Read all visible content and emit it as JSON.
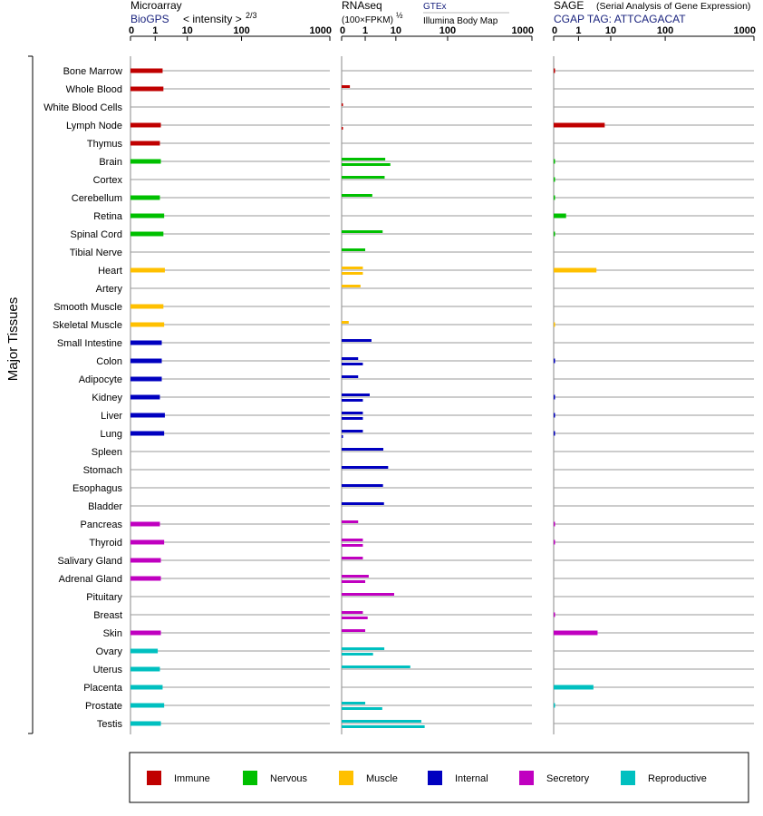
{
  "chart_data": {
    "type": "bar",
    "y_group_label": "Major Tissues",
    "tissues": [
      "Bone Marrow",
      "Whole Blood",
      "White Blood Cells",
      "Lymph Node",
      "Thymus",
      "Brain",
      "Cortex",
      "Cerebellum",
      "Retina",
      "Spinal Cord",
      "Tibial Nerve",
      "Heart",
      "Artery",
      "Smooth Muscle",
      "Skeletal Muscle",
      "Small Intestine",
      "Colon",
      "Adipocyte",
      "Kidney",
      "Liver",
      "Lung",
      "Spleen",
      "Stomach",
      "Esophagus",
      "Bladder",
      "Pancreas",
      "Thyroid",
      "Salivary Gland",
      "Adrenal Gland",
      "Pituitary",
      "Breast",
      "Skin",
      "Ovary",
      "Uterus",
      "Placenta",
      "Prostate",
      "Testis"
    ],
    "tissue_category": [
      "Immune",
      "Immune",
      "Immune",
      "Immune",
      "Immune",
      "Nervous",
      "Nervous",
      "Nervous",
      "Nervous",
      "Nervous",
      "Nervous",
      "Muscle",
      "Muscle",
      "Muscle",
      "Muscle",
      "Internal",
      "Internal",
      "Internal",
      "Internal",
      "Internal",
      "Internal",
      "Internal",
      "Internal",
      "Internal",
      "Internal",
      "Secretory",
      "Secretory",
      "Secretory",
      "Secretory",
      "Secretory",
      "Secretory",
      "Secretory",
      "Reproductive",
      "Reproductive",
      "Reproductive",
      "Reproductive",
      "Reproductive"
    ],
    "categories": [
      {
        "name": "Immune",
        "color": "#c00000"
      },
      {
        "name": "Nervous",
        "color": "#00c000"
      },
      {
        "name": "Muscle",
        "color": "#ffc000"
      },
      {
        "name": "Internal",
        "color": "#0000c0"
      },
      {
        "name": "Secretory",
        "color": "#c000c0"
      },
      {
        "name": "Reproductive",
        "color": "#00c0c0"
      }
    ],
    "x_ticks": [
      "0",
      "1",
      "10",
      "100",
      "1000"
    ],
    "panels": [
      {
        "title": "Microarray",
        "source": "BioGPS",
        "axis_label": "< intensity >",
        "axis_exponent": "2/3",
        "series": [
          {
            "values": [
              1.7,
              1.8,
              null,
              1.5,
              1.4,
              1.5,
              null,
              1.4,
              1.9,
              1.8,
              null,
              2.0,
              null,
              1.8,
              1.9,
              1.6,
              1.6,
              1.6,
              1.4,
              2.0,
              1.9,
              null,
              null,
              null,
              null,
              1.4,
              1.9,
              1.5,
              1.5,
              null,
              null,
              1.5,
              1.2,
              1.4,
              1.7,
              1.9,
              1.5
            ]
          }
        ]
      },
      {
        "title": "RNAseq",
        "axis_label": "(100×FPKM)",
        "axis_exponent": "½",
        "sources": [
          "GTEx",
          "Illumina Body Map"
        ],
        "series": [
          {
            "name": "GTEx",
            "values": [
              null,
              0.35,
              0.02,
              null,
              null,
              4.5,
              4.3,
              1.7,
              null,
              3.7,
              1.0,
              0.9,
              0.8,
              null,
              0.3,
              1.6,
              0.7,
              0.7,
              1.4,
              0.9,
              0.9,
              3.9,
              5.6,
              3.8,
              4.1,
              0.7,
              0.9,
              0.9,
              1.3,
              8.8,
              0.9,
              1.0,
              4.2,
              19,
              null,
              1.0,
              31
            ]
          },
          {
            "name": "Illumina Body Map",
            "values": [
              null,
              null,
              null,
              0.02,
              null,
              6.6,
              null,
              null,
              null,
              null,
              null,
              0.9,
              null,
              null,
              null,
              null,
              0.9,
              null,
              0.9,
              0.9,
              0.02,
              null,
              null,
              null,
              null,
              null,
              0.9,
              null,
              1.0,
              null,
              1.2,
              null,
              1.8,
              null,
              null,
              3.6,
              36
            ]
          }
        ]
      },
      {
        "title": "SAGE",
        "title_note": "(Serial Analysis of Gene Expression)",
        "source": "CGAP TAG: ATTCAGACAT",
        "series": [
          {
            "values": [
              0.03,
              null,
              null,
              6.5,
              null,
              0.02,
              0.02,
              0.02,
              0.5,
              0.02,
              null,
              3.6,
              null,
              null,
              0.01,
              null,
              0.03,
              null,
              0.03,
              0.03,
              0.03,
              null,
              null,
              null,
              null,
              0.03,
              0.03,
              null,
              null,
              null,
              0.03,
              3.9,
              null,
              null,
              2.9,
              0.02,
              null
            ]
          }
        ]
      }
    ]
  }
}
